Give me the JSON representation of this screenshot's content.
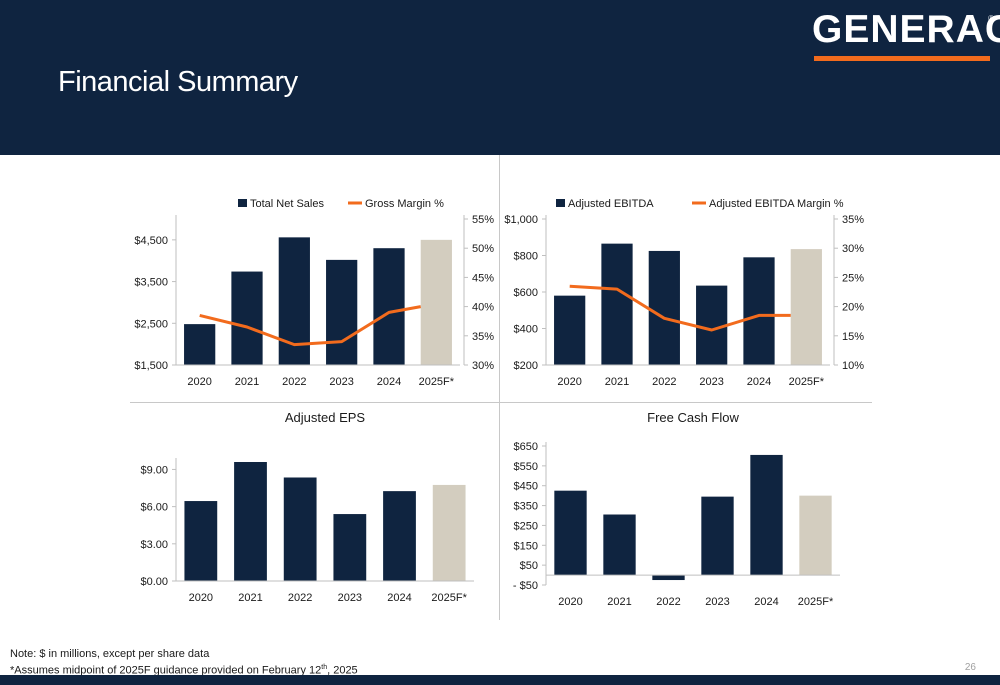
{
  "header": {
    "title": "Financial Summary",
    "logo_text": "GENERAC",
    "logo_reg": "®"
  },
  "footer": {
    "note": "Note: $ in millions, except per share data",
    "assumption_prefix": "*Assumes midpoint of 2025F guidance provided on February 12",
    "assumption_sup": "th",
    "assumption_suffix": ", 2025",
    "page_number": "26"
  },
  "colors": {
    "navy": "#0f2440",
    "forecast": "#d3cdbf",
    "orange": "#f26b1d",
    "axis": "#bfbfbf"
  },
  "chart_data": [
    {
      "id": "net-sales",
      "type": "bar",
      "title": "",
      "categories": [
        "2020",
        "2021",
        "2022",
        "2023",
        "2024",
        "2025F*"
      ],
      "series": [
        {
          "name": "Total Net Sales",
          "axis": "left",
          "values": [
            2480,
            3740,
            4560,
            4020,
            4300,
            4500
          ]
        },
        {
          "name": "Gross Margin %",
          "type": "line",
          "axis": "right",
          "values": [
            38.5,
            36.5,
            33.5,
            34.0,
            39.0,
            40.0
          ]
        }
      ],
      "left_axis": {
        "min": 1500,
        "max": 5000,
        "ticks": [
          1500,
          2500,
          3500,
          4500
        ],
        "tick_labels": [
          "$1,500",
          "$2,500",
          "$3,500",
          "$4,500"
        ]
      },
      "right_axis": {
        "min": 30,
        "max": 55,
        "ticks": [
          30,
          35,
          40,
          45,
          50,
          55
        ],
        "tick_labels": [
          "30%",
          "35%",
          "40%",
          "45%",
          "50%",
          "55%"
        ]
      },
      "legend": "top"
    },
    {
      "id": "adjusted-ebitda",
      "type": "bar",
      "title": "",
      "categories": [
        "2020",
        "2021",
        "2022",
        "2023",
        "2024",
        "2025F*"
      ],
      "series": [
        {
          "name": "Adjusted EBITDA",
          "axis": "left",
          "values": [
            580,
            865,
            825,
            635,
            790,
            835
          ]
        },
        {
          "name": "Adjusted EBITDA Margin %",
          "type": "line",
          "axis": "right",
          "values": [
            23.5,
            23.0,
            18.0,
            16.0,
            18.5,
            18.5
          ]
        }
      ],
      "left_axis": {
        "min": 200,
        "max": 1000,
        "ticks": [
          200,
          400,
          600,
          800,
          1000
        ],
        "tick_labels": [
          "$200",
          "$400",
          "$600",
          "$800",
          "$1,000"
        ]
      },
      "right_axis": {
        "min": 10,
        "max": 35,
        "ticks": [
          10,
          15,
          20,
          25,
          30,
          35
        ],
        "tick_labels": [
          "10%",
          "15%",
          "20%",
          "25%",
          "30%",
          "35%"
        ]
      },
      "legend": "top"
    },
    {
      "id": "adjusted-eps",
      "type": "bar",
      "title": "Adjusted EPS",
      "categories": [
        "2020",
        "2021",
        "2022",
        "2023",
        "2024",
        "2025F*"
      ],
      "series": [
        {
          "name": "",
          "axis": "left",
          "values": [
            6.45,
            9.6,
            8.35,
            5.4,
            7.25,
            7.75
          ]
        }
      ],
      "left_axis": {
        "min": 0,
        "max": 9.6,
        "ticks": [
          0,
          3,
          6,
          9
        ],
        "tick_labels": [
          "$0.00",
          "$3.00",
          "$6.00",
          "$9.00"
        ]
      },
      "legend": "none"
    },
    {
      "id": "free-cash-flow",
      "type": "bar",
      "title": "Free Cash Flow",
      "categories": [
        "2020",
        "2021",
        "2022",
        "2023",
        "2024",
        "2025F*"
      ],
      "series": [
        {
          "name": "",
          "axis": "left",
          "values": [
            425,
            305,
            -25,
            395,
            605,
            400
          ]
        }
      ],
      "left_axis": {
        "min": -50,
        "max": 650,
        "ticks": [
          -50,
          50,
          150,
          250,
          350,
          450,
          550,
          650
        ],
        "tick_labels": [
          "- $50",
          "$50",
          "$150",
          "$250",
          "$350",
          "$450",
          "$550",
          "$650"
        ]
      },
      "legend": "none"
    }
  ]
}
